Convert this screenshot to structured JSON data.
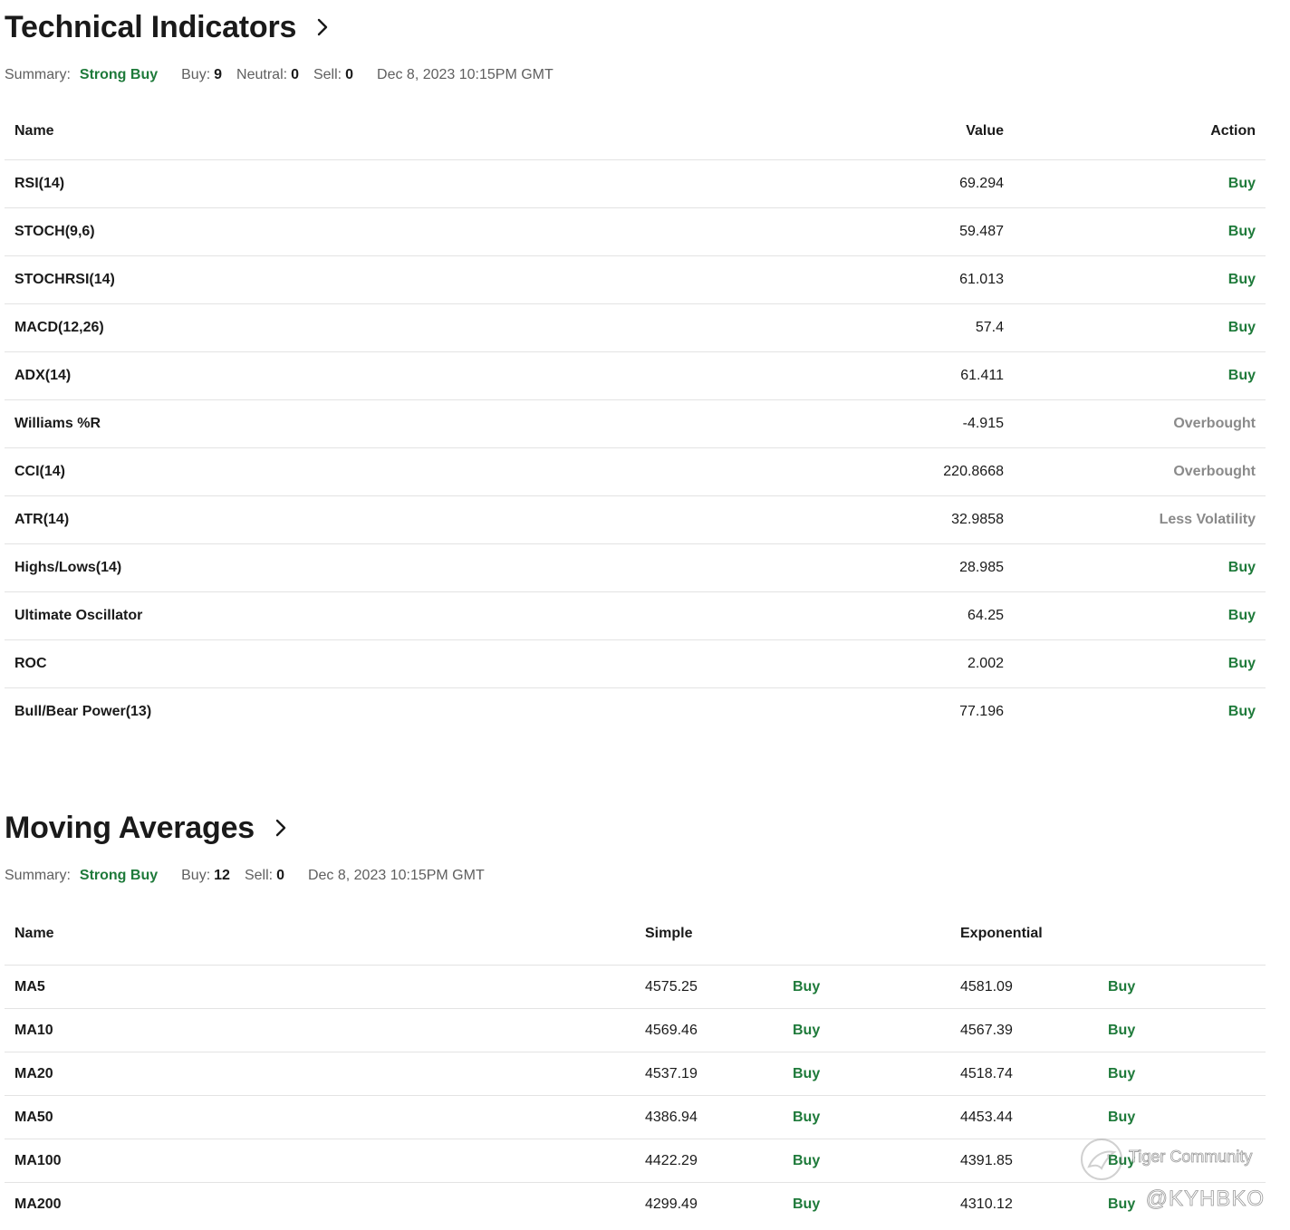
{
  "technical_indicators": {
    "title": "Technical Indicators",
    "summary": {
      "label": "Summary:",
      "value": "Strong Buy",
      "buy_label": "Buy:",
      "buy_count": "9",
      "neutral_label": "Neutral:",
      "neutral_count": "0",
      "sell_label": "Sell:",
      "sell_count": "0",
      "date": "Dec 8, 2023 10:15PM GMT"
    },
    "columns": {
      "name": "Name",
      "value": "Value",
      "action": "Action"
    },
    "rows": [
      {
        "name": "RSI(14)",
        "value": "69.294",
        "action": "Buy"
      },
      {
        "name": "STOCH(9,6)",
        "value": "59.487",
        "action": "Buy"
      },
      {
        "name": "STOCHRSI(14)",
        "value": "61.013",
        "action": "Buy"
      },
      {
        "name": "MACD(12,26)",
        "value": "57.4",
        "action": "Buy"
      },
      {
        "name": "ADX(14)",
        "value": "61.411",
        "action": "Buy"
      },
      {
        "name": "Williams %R",
        "value": "-4.915",
        "action": "Overbought"
      },
      {
        "name": "CCI(14)",
        "value": "220.8668",
        "action": "Overbought"
      },
      {
        "name": "ATR(14)",
        "value": "32.9858",
        "action": "Less Volatility"
      },
      {
        "name": "Highs/Lows(14)",
        "value": "28.985",
        "action": "Buy"
      },
      {
        "name": "Ultimate Oscillator",
        "value": "64.25",
        "action": "Buy"
      },
      {
        "name": "ROC",
        "value": "2.002",
        "action": "Buy"
      },
      {
        "name": "Bull/Bear Power(13)",
        "value": "77.196",
        "action": "Buy"
      }
    ]
  },
  "moving_averages": {
    "title": "Moving Averages",
    "summary": {
      "label": "Summary:",
      "value": "Strong Buy",
      "buy_label": "Buy:",
      "buy_count": "12",
      "sell_label": "Sell:",
      "sell_count": "0",
      "date": "Dec 8, 2023 10:15PM GMT"
    },
    "columns": {
      "name": "Name",
      "simple": "Simple",
      "exponential": "Exponential"
    },
    "rows": [
      {
        "name": "MA5",
        "simple": "4575.25",
        "simple_action": "Buy",
        "exponential": "4581.09",
        "exponential_action": "Buy"
      },
      {
        "name": "MA10",
        "simple": "4569.46",
        "simple_action": "Buy",
        "exponential": "4567.39",
        "exponential_action": "Buy"
      },
      {
        "name": "MA20",
        "simple": "4537.19",
        "simple_action": "Buy",
        "exponential": "4518.74",
        "exponential_action": "Buy"
      },
      {
        "name": "MA50",
        "simple": "4386.94",
        "simple_action": "Buy",
        "exponential": "4453.44",
        "exponential_action": "Buy"
      },
      {
        "name": "MA100",
        "simple": "4422.29",
        "simple_action": "Buy",
        "exponential": "4391.85",
        "exponential_action": "Buy"
      },
      {
        "name": "MA200",
        "simple": "4299.49",
        "simple_action": "Buy",
        "exponential": "4310.12",
        "exponential_action": "Buy"
      }
    ]
  },
  "watermark": {
    "brand": "Tiger Community",
    "handle": "@KYHBKO"
  },
  "colors": {
    "buy": "#1e7a3a",
    "neutral_action": "#8a8a8a",
    "text": "#1a1a1a",
    "muted": "#5f5f5f",
    "divider": "#e3e3e3"
  }
}
